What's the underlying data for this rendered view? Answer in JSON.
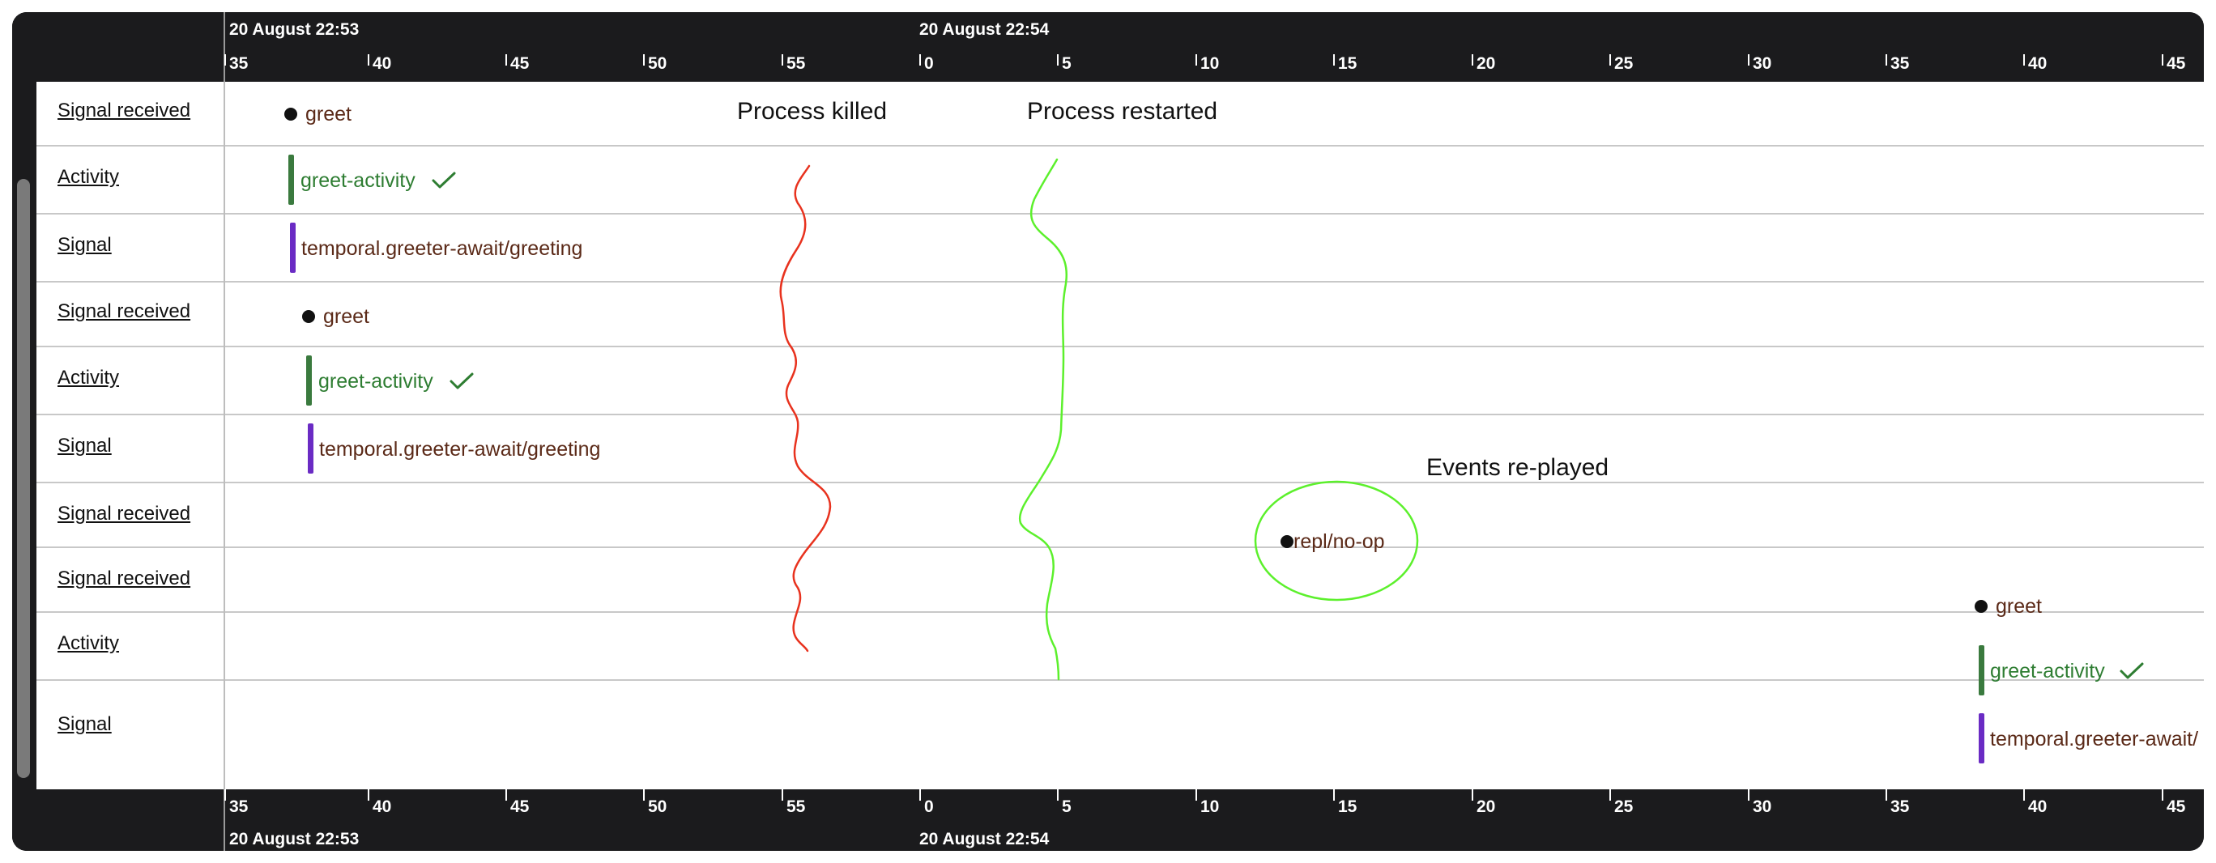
{
  "timeline": {
    "top_axis": {
      "dates": [
        "20 August 22:53",
        "20 August 22:54"
      ],
      "ticks": [
        "35",
        "40",
        "45",
        "50",
        "55",
        "0",
        "5",
        "10",
        "15",
        "20",
        "25",
        "30",
        "35",
        "40",
        "45"
      ]
    },
    "bottom_axis": {
      "dates": [
        "20 August 22:53",
        "20 August 22:54"
      ],
      "ticks": [
        "35",
        "40",
        "45",
        "50",
        "55",
        "0",
        "5",
        "10",
        "15",
        "20",
        "25",
        "30",
        "35",
        "40",
        "45"
      ]
    },
    "rows": [
      {
        "label": "Signal received",
        "event": "greet",
        "kind": "signal-received"
      },
      {
        "label": "Activity",
        "event": "greet-activity",
        "kind": "activity",
        "completed": true
      },
      {
        "label": "Signal",
        "event": "temporal.greeter-await/greeting",
        "kind": "signal"
      },
      {
        "label": "Signal received",
        "event": "greet",
        "kind": "signal-received"
      },
      {
        "label": "Activity",
        "event": "greet-activity",
        "kind": "activity",
        "completed": true
      },
      {
        "label": "Signal",
        "event": "temporal.greeter-await/greeting",
        "kind": "signal"
      },
      {
        "label": "Signal received",
        "event": "repl/no-op",
        "kind": "signal-received"
      },
      {
        "label": "Signal received",
        "event": "greet",
        "kind": "signal-received"
      },
      {
        "label": "Activity",
        "event": "greet-activity",
        "kind": "activity",
        "completed": true
      },
      {
        "label": "Signal",
        "event": "temporal.greeter-await/",
        "kind": "signal"
      }
    ]
  },
  "annotations": {
    "process_killed": "Process killed",
    "process_restarted": "Process restarted",
    "events_replayed": "Events re-played"
  },
  "colors": {
    "axis_bg": "#1b1b1d",
    "activity_green": "#3a7a3e",
    "signal_purple": "#6a2bc4",
    "event_brown": "#5b2a18",
    "killed_red": "#e8321e",
    "restarted_green": "#5cf02c"
  }
}
